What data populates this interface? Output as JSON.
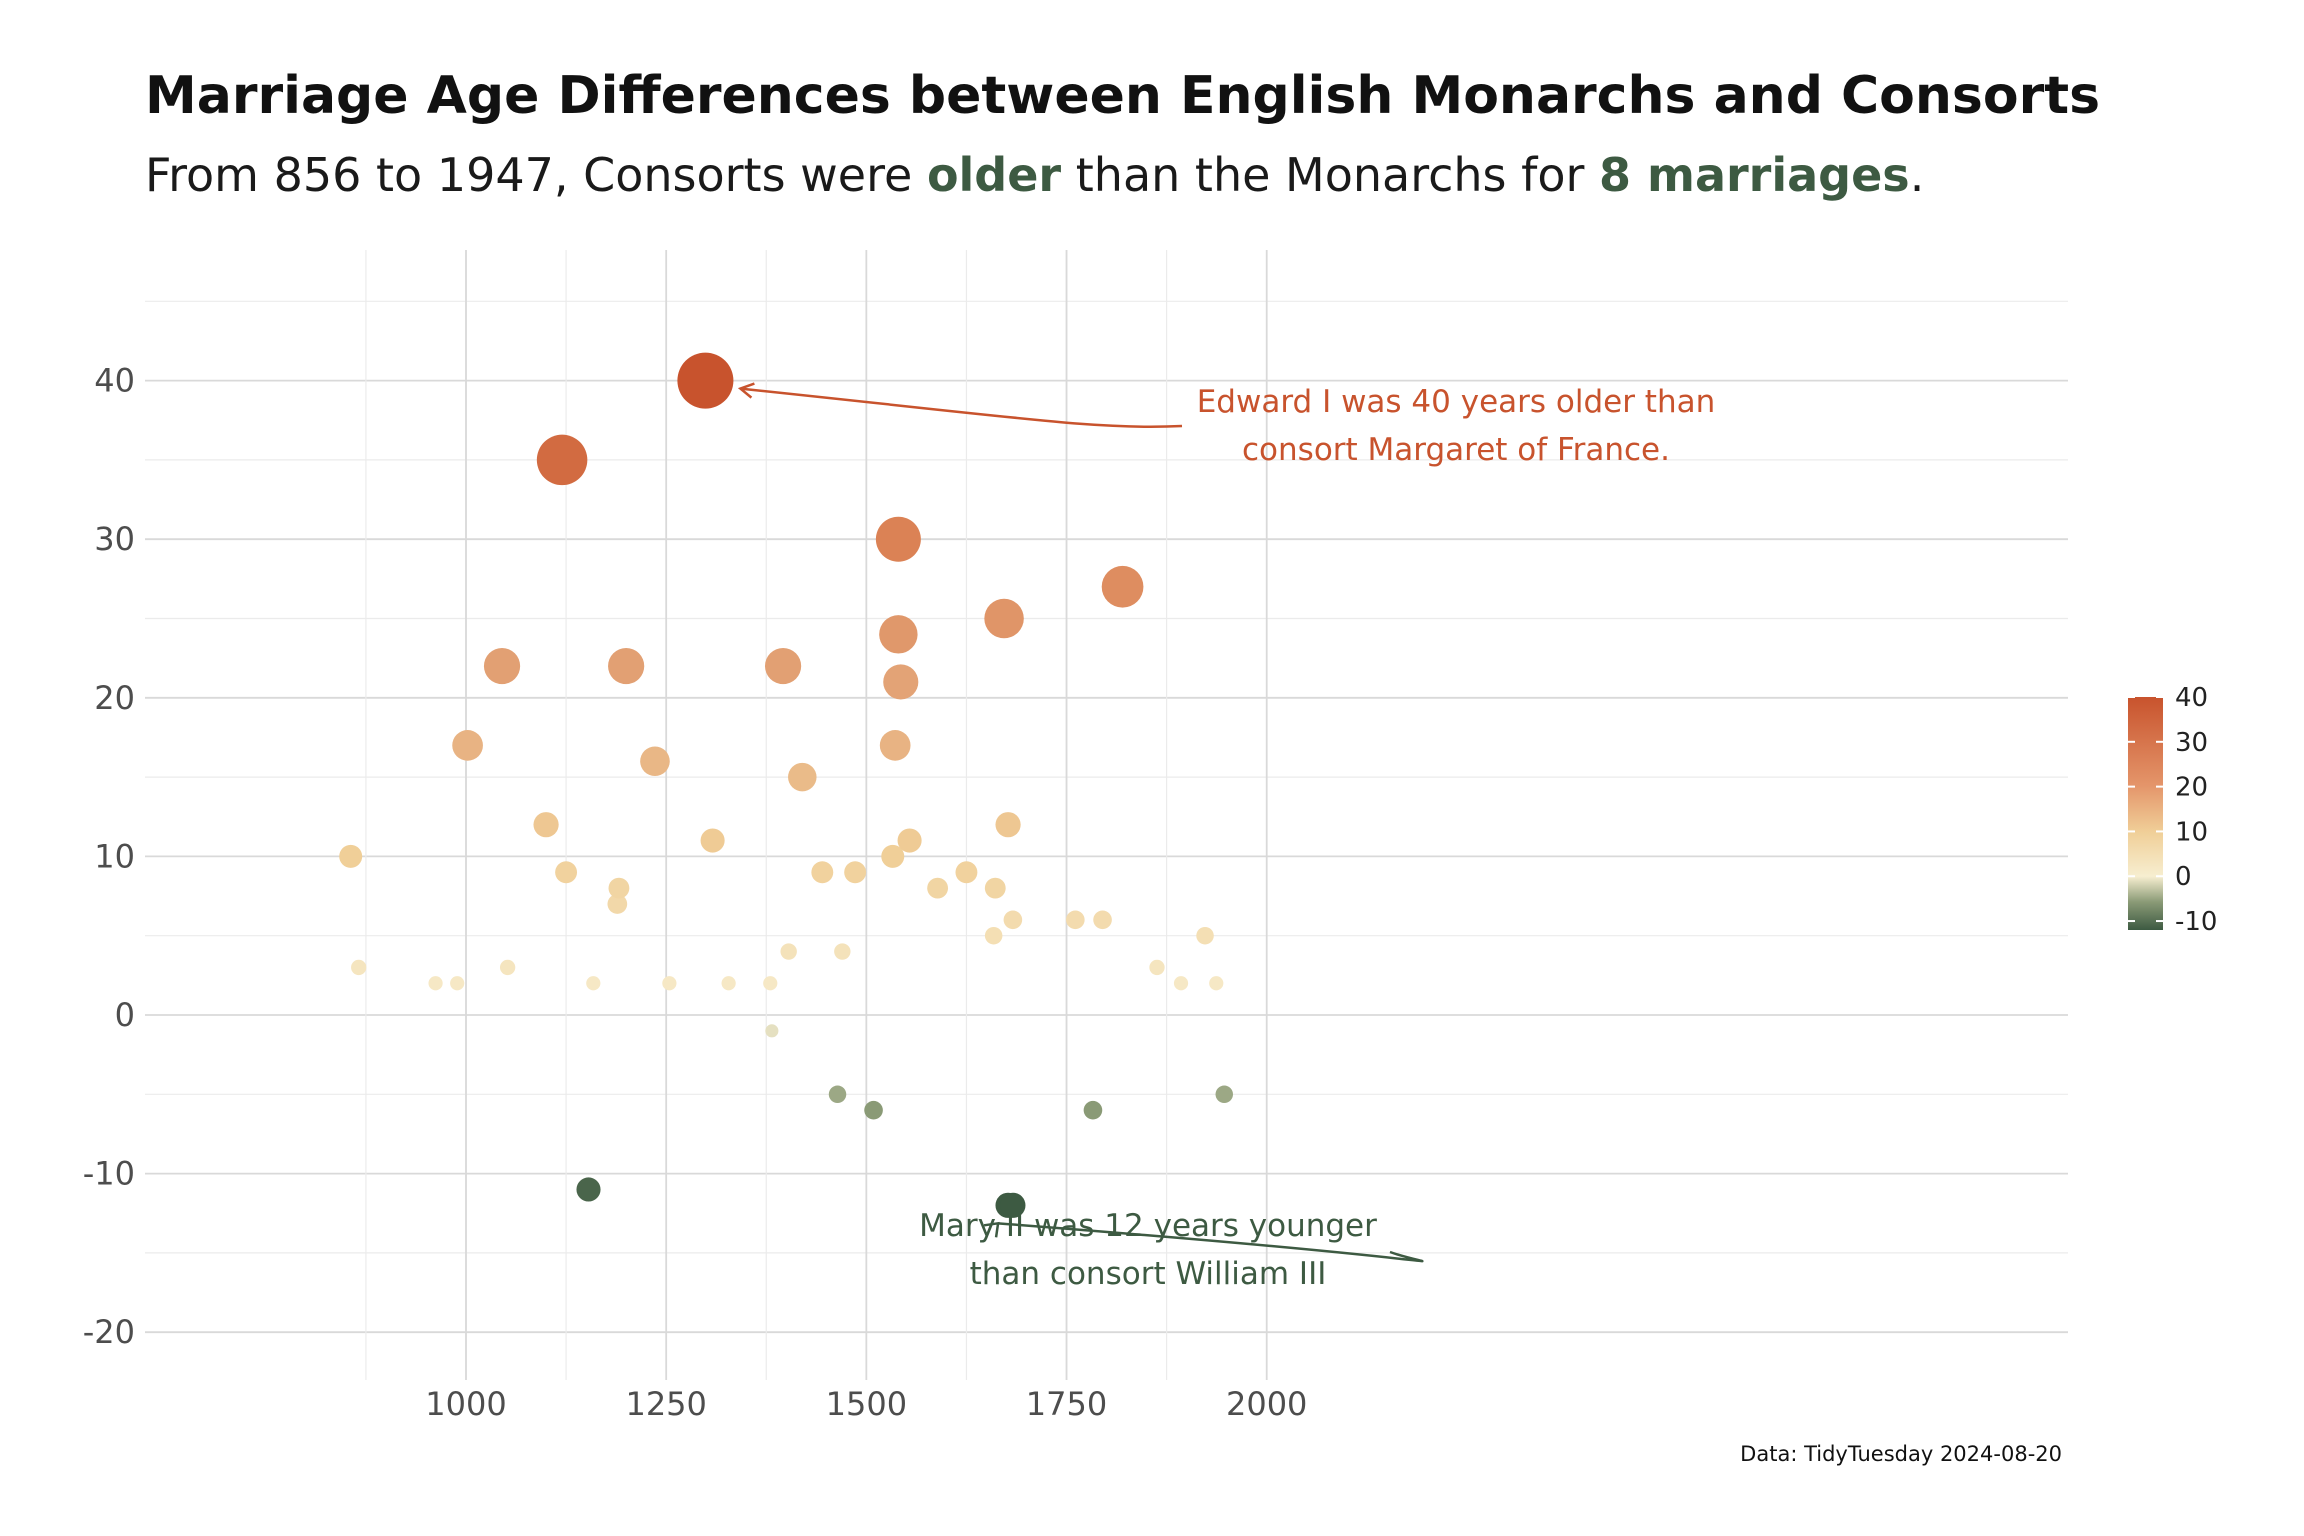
{
  "header": {
    "title": "Marriage Age Differences between English Monarchs and Consorts",
    "subtitle_prefix": "From 856 to 1947, Consorts were ",
    "subtitle_older": "older",
    "subtitle_middle": " than the Monarchs for ",
    "subtitle_count": "8 marriages",
    "subtitle_suffix": "."
  },
  "caption": "Data: TidyTuesday 2024-08-20",
  "colors": {
    "high": "#c8532d",
    "mid_high": "#e4956a",
    "low_pos": "#f0cf98",
    "zero": "#f7eed0",
    "neg": "#3d5a42",
    "highlight_text": "#3d5a42",
    "annotation_top": "#c8532d",
    "annotation_bottom": "#3d5a42"
  },
  "chart_data": {
    "type": "scatter",
    "title": "",
    "xlabel": "",
    "ylabel": "",
    "xlim": [
      800,
      2000
    ],
    "ylim": [
      -23,
      45
    ],
    "x_ticks": [
      1000,
      1250,
      1500,
      1750,
      2000
    ],
    "x_tick_labels": [
      "1000",
      "1250",
      "1500",
      "1750",
      "2000"
    ],
    "y_ticks": [
      -20,
      -10,
      0,
      10,
      20,
      30,
      40
    ],
    "y_tick_labels": [
      "-20",
      "-10",
      "0",
      "10",
      "20",
      "30",
      "40"
    ],
    "grid": true,
    "size_and_color_encode": "age difference",
    "legend": {
      "position": "right",
      "type": "colorbar",
      "range": [
        -12,
        40
      ],
      "ticks": [
        40,
        30,
        20,
        10,
        0,
        -10
      ],
      "tick_labels": [
        "40",
        "30",
        "20",
        "10",
        "0",
        "-10"
      ]
    },
    "points": [
      {
        "x": 856,
        "y": 10
      },
      {
        "x": 866,
        "y": 3
      },
      {
        "x": 962,
        "y": 2
      },
      {
        "x": 989,
        "y": 2
      },
      {
        "x": 1002,
        "y": 17
      },
      {
        "x": 1045,
        "y": 22
      },
      {
        "x": 1052,
        "y": 3
      },
      {
        "x": 1100,
        "y": 12
      },
      {
        "x": 1120,
        "y": 35
      },
      {
        "x": 1125,
        "y": 9
      },
      {
        "x": 1153,
        "y": -11
      },
      {
        "x": 1159,
        "y": 2
      },
      {
        "x": 1189,
        "y": 7
      },
      {
        "x": 1191,
        "y": 8
      },
      {
        "x": 1200,
        "y": 22
      },
      {
        "x": 1236,
        "y": 16
      },
      {
        "x": 1254,
        "y": 2
      },
      {
        "x": 1299,
        "y": 40
      },
      {
        "x": 1308,
        "y": 11
      },
      {
        "x": 1328,
        "y": 2
      },
      {
        "x": 1380,
        "y": 2
      },
      {
        "x": 1382,
        "y": -1
      },
      {
        "x": 1396,
        "y": 22
      },
      {
        "x": 1403,
        "y": 4
      },
      {
        "x": 1420,
        "y": 15
      },
      {
        "x": 1445,
        "y": 9
      },
      {
        "x": 1464,
        "y": -5
      },
      {
        "x": 1470,
        "y": 4
      },
      {
        "x": 1486,
        "y": 9
      },
      {
        "x": 1509,
        "y": -6
      },
      {
        "x": 1533,
        "y": 10
      },
      {
        "x": 1536,
        "y": 17
      },
      {
        "x": 1540,
        "y": 30
      },
      {
        "x": 1540,
        "y": 24
      },
      {
        "x": 1543,
        "y": 21
      },
      {
        "x": 1554,
        "y": 11
      },
      {
        "x": 1589,
        "y": 8
      },
      {
        "x": 1625,
        "y": 9
      },
      {
        "x": 1659,
        "y": 5
      },
      {
        "x": 1661,
        "y": 8
      },
      {
        "x": 1672,
        "y": 25
      },
      {
        "x": 1677,
        "y": 12
      },
      {
        "x": 1677,
        "y": -12
      },
      {
        "x": 1683,
        "y": 6
      },
      {
        "x": 1683,
        "y": -12
      },
      {
        "x": 1761,
        "y": 6
      },
      {
        "x": 1783,
        "y": -6
      },
      {
        "x": 1795,
        "y": 6
      },
      {
        "x": 1820,
        "y": 27
      },
      {
        "x": 1863,
        "y": 3
      },
      {
        "x": 1893,
        "y": 2
      },
      {
        "x": 1923,
        "y": 5
      },
      {
        "x": 1937,
        "y": 2
      },
      {
        "x": 1947,
        "y": -5
      }
    ],
    "annotations": [
      {
        "text_lines": [
          "Edward I was 40 years older than",
          "consort Margaret of France."
        ],
        "target": {
          "x": 1299,
          "y": 40
        }
      },
      {
        "text_lines": [
          "Mary II was 12 years younger",
          "than consort William III"
        ],
        "target": {
          "x": 1677,
          "y": -12
        }
      }
    ]
  }
}
